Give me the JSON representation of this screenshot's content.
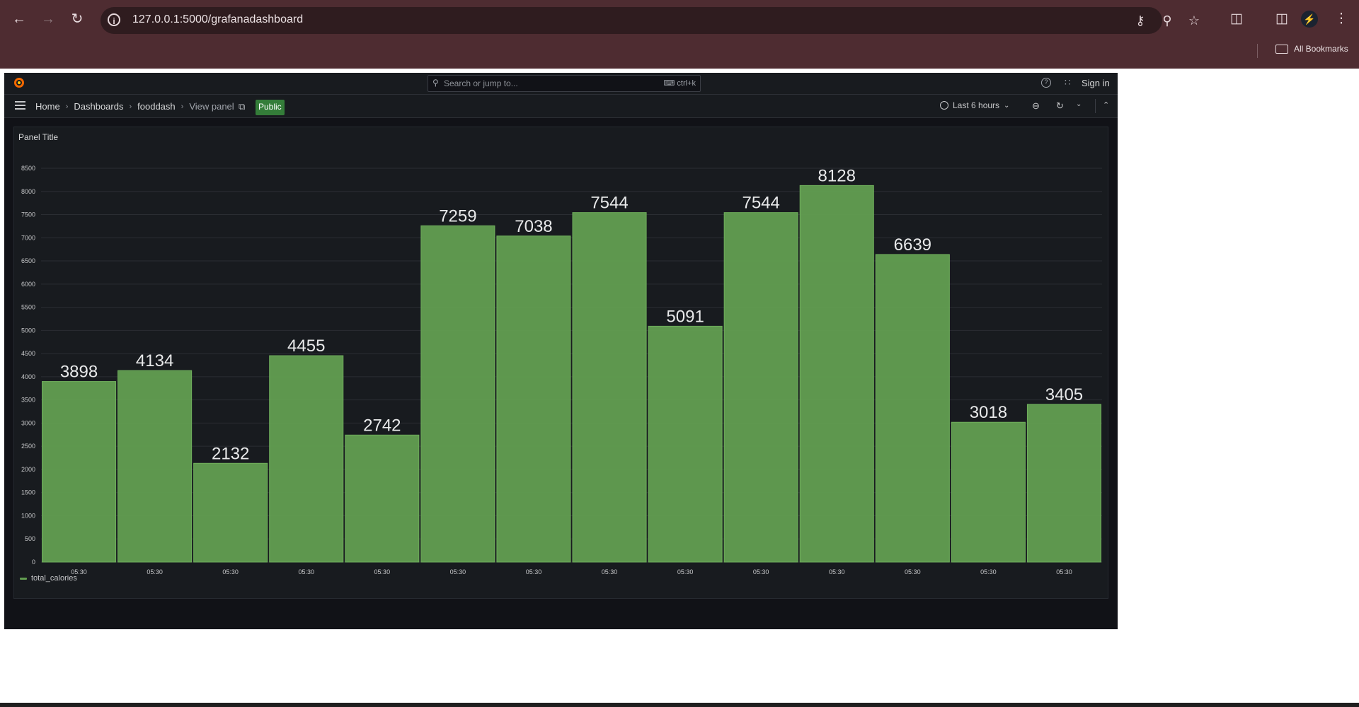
{
  "browser": {
    "url": "127.0.0.1:5000/grafanadashboard",
    "bookmarks_label": "All Bookmarks"
  },
  "grafana": {
    "search_placeholder": "Search or jump to...",
    "search_shortcut": "ctrl+k",
    "sign_in": "Sign in",
    "breadcrumbs": [
      "Home",
      "Dashboards",
      "fooddash",
      "View panel"
    ],
    "public_badge": "Public",
    "time_range": "Last 6 hours",
    "panel_title": "Panel Title"
  },
  "chart_data": {
    "type": "bar",
    "title": "Panel Title",
    "categories": [
      "05:30",
      "05:30",
      "05:30",
      "05:30",
      "05:30",
      "05:30",
      "05:30",
      "05:30",
      "05:30",
      "05:30",
      "05:30",
      "05:30",
      "05:30",
      "05:30"
    ],
    "series": [
      {
        "name": "total_calories",
        "values": [
          3898,
          4134,
          2132,
          4455,
          2742,
          7259,
          7038,
          7544,
          5091,
          7544,
          8128,
          6639,
          3018,
          3405
        ],
        "color": "#629e51"
      }
    ],
    "ylim": [
      0,
      8500
    ],
    "yticks": [
      0,
      500,
      1000,
      1500,
      2000,
      2500,
      3000,
      3500,
      4000,
      4500,
      5000,
      5500,
      6000,
      6500,
      7000,
      7500,
      8000,
      8500
    ],
    "grid": true,
    "legend": "bottom-left",
    "show_value_labels": true
  }
}
